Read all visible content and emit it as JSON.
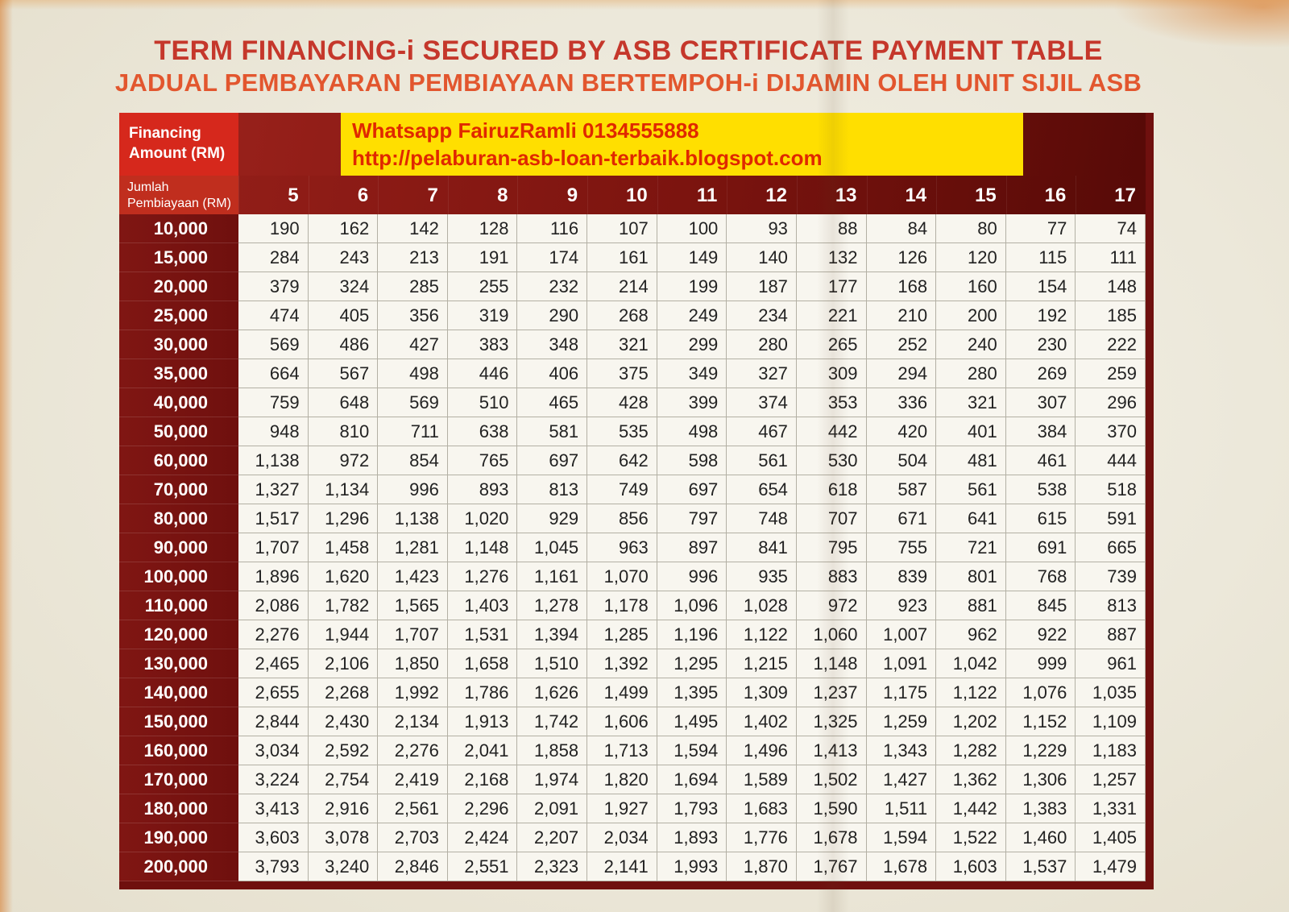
{
  "page": {
    "title": "TERM FINANCING-i SECURED BY ASB CERTIFICATE PAYMENT TABLE",
    "subtitle": "JADUAL PEMBAYARAN PEMBIAYAAN BERTEMPOH-i DIJAMIN OLEH UNIT SIJIL ASB"
  },
  "banner": {
    "line1": "Whatsapp FairuzRamli 0134555888",
    "line2": "http://pelaburan-asb-loan-terbaik.blogspot.com"
  },
  "table": {
    "corner_top": {
      "line1": "Financing",
      "line2": "Amount (RM)"
    },
    "corner_bottom": {
      "line1": "Jumlah",
      "line2": "Pembiayaan (RM)"
    },
    "columns": [
      "5",
      "6",
      "7",
      "8",
      "9",
      "10",
      "11",
      "12",
      "13",
      "14",
      "15",
      "16",
      "17"
    ],
    "rows": [
      {
        "label": "10,000",
        "values": [
          "190",
          "162",
          "142",
          "128",
          "116",
          "107",
          "100",
          "93",
          "88",
          "84",
          "80",
          "77",
          "74"
        ]
      },
      {
        "label": "15,000",
        "values": [
          "284",
          "243",
          "213",
          "191",
          "174",
          "161",
          "149",
          "140",
          "132",
          "126",
          "120",
          "115",
          "111"
        ]
      },
      {
        "label": "20,000",
        "values": [
          "379",
          "324",
          "285",
          "255",
          "232",
          "214",
          "199",
          "187",
          "177",
          "168",
          "160",
          "154",
          "148"
        ]
      },
      {
        "label": "25,000",
        "values": [
          "474",
          "405",
          "356",
          "319",
          "290",
          "268",
          "249",
          "234",
          "221",
          "210",
          "200",
          "192",
          "185"
        ]
      },
      {
        "label": "30,000",
        "values": [
          "569",
          "486",
          "427",
          "383",
          "348",
          "321",
          "299",
          "280",
          "265",
          "252",
          "240",
          "230",
          "222"
        ]
      },
      {
        "label": "35,000",
        "values": [
          "664",
          "567",
          "498",
          "446",
          "406",
          "375",
          "349",
          "327",
          "309",
          "294",
          "280",
          "269",
          "259"
        ]
      },
      {
        "label": "40,000",
        "values": [
          "759",
          "648",
          "569",
          "510",
          "465",
          "428",
          "399",
          "374",
          "353",
          "336",
          "321",
          "307",
          "296"
        ]
      },
      {
        "label": "50,000",
        "values": [
          "948",
          "810",
          "711",
          "638",
          "581",
          "535",
          "498",
          "467",
          "442",
          "420",
          "401",
          "384",
          "370"
        ]
      },
      {
        "label": "60,000",
        "values": [
          "1,138",
          "972",
          "854",
          "765",
          "697",
          "642",
          "598",
          "561",
          "530",
          "504",
          "481",
          "461",
          "444"
        ]
      },
      {
        "label": "70,000",
        "values": [
          "1,327",
          "1,134",
          "996",
          "893",
          "813",
          "749",
          "697",
          "654",
          "618",
          "587",
          "561",
          "538",
          "518"
        ]
      },
      {
        "label": "80,000",
        "values": [
          "1,517",
          "1,296",
          "1,138",
          "1,020",
          "929",
          "856",
          "797",
          "748",
          "707",
          "671",
          "641",
          "615",
          "591"
        ]
      },
      {
        "label": "90,000",
        "values": [
          "1,707",
          "1,458",
          "1,281",
          "1,148",
          "1,045",
          "963",
          "897",
          "841",
          "795",
          "755",
          "721",
          "691",
          "665"
        ]
      },
      {
        "label": "100,000",
        "values": [
          "1,896",
          "1,620",
          "1,423",
          "1,276",
          "1,161",
          "1,070",
          "996",
          "935",
          "883",
          "839",
          "801",
          "768",
          "739"
        ]
      },
      {
        "label": "110,000",
        "values": [
          "2,086",
          "1,782",
          "1,565",
          "1,403",
          "1,278",
          "1,178",
          "1,096",
          "1,028",
          "972",
          "923",
          "881",
          "845",
          "813"
        ]
      },
      {
        "label": "120,000",
        "values": [
          "2,276",
          "1,944",
          "1,707",
          "1,531",
          "1,394",
          "1,285",
          "1,196",
          "1,122",
          "1,060",
          "1,007",
          "962",
          "922",
          "887"
        ]
      },
      {
        "label": "130,000",
        "values": [
          "2,465",
          "2,106",
          "1,850",
          "1,658",
          "1,510",
          "1,392",
          "1,295",
          "1,215",
          "1,148",
          "1,091",
          "1,042",
          "999",
          "961"
        ]
      },
      {
        "label": "140,000",
        "values": [
          "2,655",
          "2,268",
          "1,992",
          "1,786",
          "1,626",
          "1,499",
          "1,395",
          "1,309",
          "1,237",
          "1,175",
          "1,122",
          "1,076",
          "1,035"
        ]
      },
      {
        "label": "150,000",
        "values": [
          "2,844",
          "2,430",
          "2,134",
          "1,913",
          "1,742",
          "1,606",
          "1,495",
          "1,402",
          "1,325",
          "1,259",
          "1,202",
          "1,152",
          "1,109"
        ]
      },
      {
        "label": "160,000",
        "values": [
          "3,034",
          "2,592",
          "2,276",
          "2,041",
          "1,858",
          "1,713",
          "1,594",
          "1,496",
          "1,413",
          "1,343",
          "1,282",
          "1,229",
          "1,183"
        ]
      },
      {
        "label": "170,000",
        "values": [
          "3,224",
          "2,754",
          "2,419",
          "2,168",
          "1,974",
          "1,820",
          "1,694",
          "1,589",
          "1,502",
          "1,427",
          "1,362",
          "1,306",
          "1,257"
        ]
      },
      {
        "label": "180,000",
        "values": [
          "3,413",
          "2,916",
          "2,561",
          "2,296",
          "2,091",
          "1,927",
          "1,793",
          "1,683",
          "1,590",
          "1,511",
          "1,442",
          "1,383",
          "1,331"
        ]
      },
      {
        "label": "190,000",
        "values": [
          "3,603",
          "3,078",
          "2,703",
          "2,424",
          "2,207",
          "2,034",
          "1,893",
          "1,776",
          "1,678",
          "1,594",
          "1,522",
          "1,460",
          "1,405"
        ]
      },
      {
        "label": "200,000",
        "values": [
          "3,793",
          "3,240",
          "2,846",
          "2,551",
          "2,323",
          "2,141",
          "1,993",
          "1,870",
          "1,767",
          "1,678",
          "1,603",
          "1,537",
          "1,479"
        ]
      }
    ]
  },
  "colors": {
    "title_red": "#c5372b",
    "subtitle_orange": "#e2562e",
    "banner_yellow": "#ffdf00",
    "banner_text_red": "#e02800",
    "corner_red": "#d6281c",
    "label_maroon": "#6f100e",
    "cell_bg": "#f8f6ef",
    "cell_border": "#b3b0a4"
  }
}
